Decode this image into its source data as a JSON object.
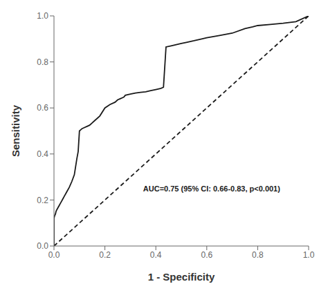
{
  "chart_data": {
    "type": "line",
    "xlabel": "1 - Specificity",
    "ylabel": "Sensitivity",
    "annotations": [
      {
        "text": "AUC=0.75 (95% CI: 0.66-0.83, p<0.001)",
        "x": 0.35,
        "y": 0.25
      }
    ],
    "xlim": [
      0.0,
      1.0
    ],
    "ylim": [
      0.0,
      1.0
    ],
    "xticks": [
      {
        "value": 0.0,
        "label": "0.0"
      },
      0.2,
      0.4,
      0.6,
      0.8,
      {
        "value": 1.0,
        "label": "1.0"
      }
    ],
    "yticks": [
      {
        "value": 0.0,
        "label": "0.0"
      },
      0.2,
      0.4,
      0.6,
      0.8,
      {
        "value": 1.0,
        "label": "1.0"
      }
    ],
    "grid": false,
    "series": [
      {
        "x": [
          0,
          1
        ],
        "values": [
          0,
          1
        ],
        "color": "#1a1a1a",
        "line_style": "dashed"
      },
      {
        "x": [
          0.0,
          0.0,
          0.002,
          0.004,
          0.006,
          0.008,
          0.01,
          0.015,
          0.02,
          0.025,
          0.03,
          0.035,
          0.04,
          0.05,
          0.06,
          0.07,
          0.08,
          0.09,
          0.095,
          0.1,
          0.105,
          0.11,
          0.12,
          0.13,
          0.14,
          0.15,
          0.16,
          0.18,
          0.2,
          0.22,
          0.24,
          0.25,
          0.26,
          0.27,
          0.275,
          0.28,
          0.3,
          0.32,
          0.34,
          0.36,
          0.38,
          0.4,
          0.42,
          0.43,
          0.44,
          0.46,
          0.48,
          0.5,
          0.52,
          0.55,
          0.58,
          0.6,
          0.65,
          0.7,
          0.75,
          0.78,
          0.8,
          0.85,
          0.9,
          0.95,
          1.0
        ],
        "values": [
          0.0,
          0.12,
          0.13,
          0.135,
          0.14,
          0.15,
          0.155,
          0.165,
          0.175,
          0.185,
          0.195,
          0.205,
          0.215,
          0.235,
          0.255,
          0.28,
          0.31,
          0.38,
          0.41,
          0.5,
          0.505,
          0.51,
          0.515,
          0.52,
          0.525,
          0.535,
          0.545,
          0.565,
          0.6,
          0.615,
          0.625,
          0.635,
          0.64,
          0.645,
          0.648,
          0.655,
          0.66,
          0.665,
          0.668,
          0.67,
          0.675,
          0.68,
          0.685,
          0.69,
          0.865,
          0.87,
          0.875,
          0.88,
          0.885,
          0.892,
          0.9,
          0.905,
          0.915,
          0.925,
          0.945,
          0.952,
          0.958,
          0.963,
          0.968,
          0.975,
          1.0
        ],
        "color": "#1a1a1a",
        "line_style": "solid"
      }
    ]
  }
}
